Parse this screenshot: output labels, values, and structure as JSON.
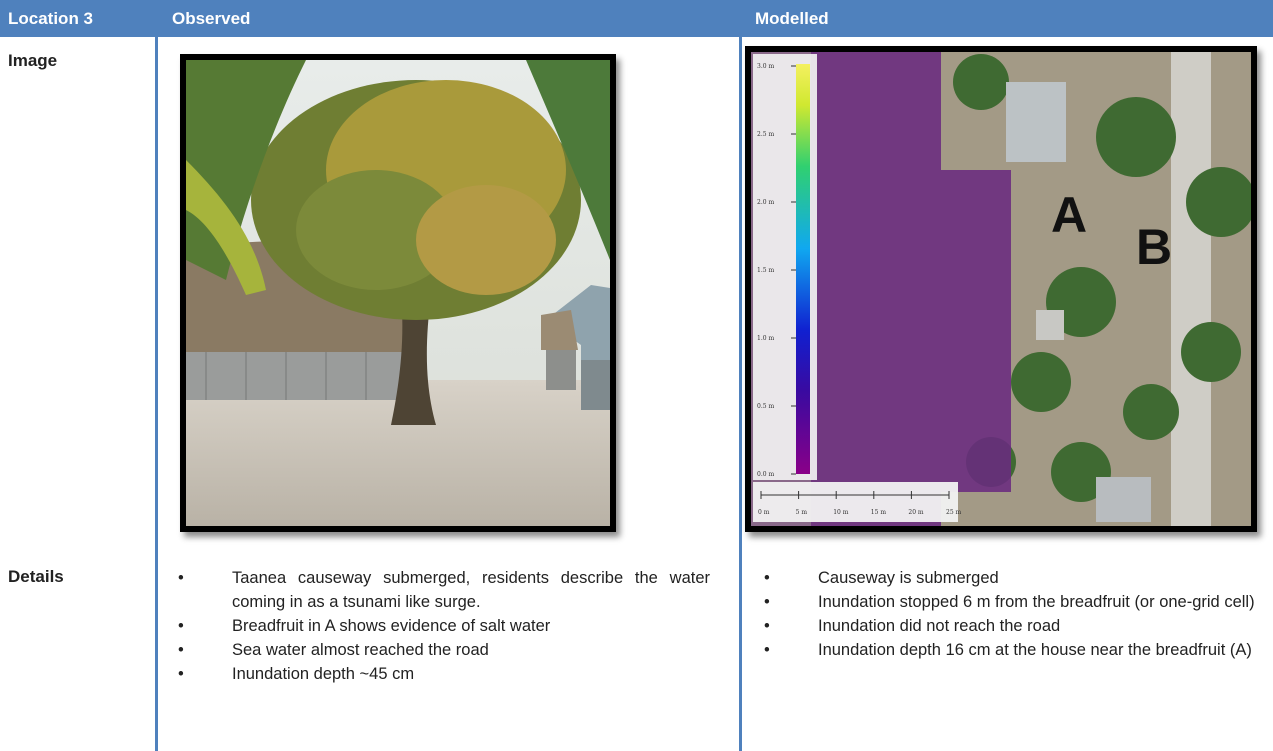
{
  "table": {
    "header": [
      "Location 3",
      "Observed",
      "Modelled"
    ],
    "rows": [
      {
        "label": "Image"
      },
      {
        "label": "Details",
        "observed": [
          "Taanea causeway submerged, residents describe the water coming in as a tsunami like surge.",
          "Breadfruit in A shows evidence of salt water",
          "Sea water almost reached the road",
          "Inundation depth ~45 cm"
        ],
        "modelled": [
          "Causeway is submerged",
          "Inundation stopped 6 m from the breadfruit (or one-grid cell)",
          "Inundation did not reach the road",
          "Inundation depth 16 cm at the house near the breadfruit (A)"
        ]
      }
    ]
  },
  "modelled_image": {
    "legend_ticks": [
      "3.0 m",
      "2.5 m",
      "2.0 m",
      "1.5 m",
      "1.0 m",
      "0.5 m",
      "0.0 m"
    ],
    "scale_labels": [
      "0 m",
      "5 m",
      "10 m",
      "15 m",
      "20 m",
      "25 m"
    ],
    "markers": [
      "A",
      "B"
    ]
  }
}
